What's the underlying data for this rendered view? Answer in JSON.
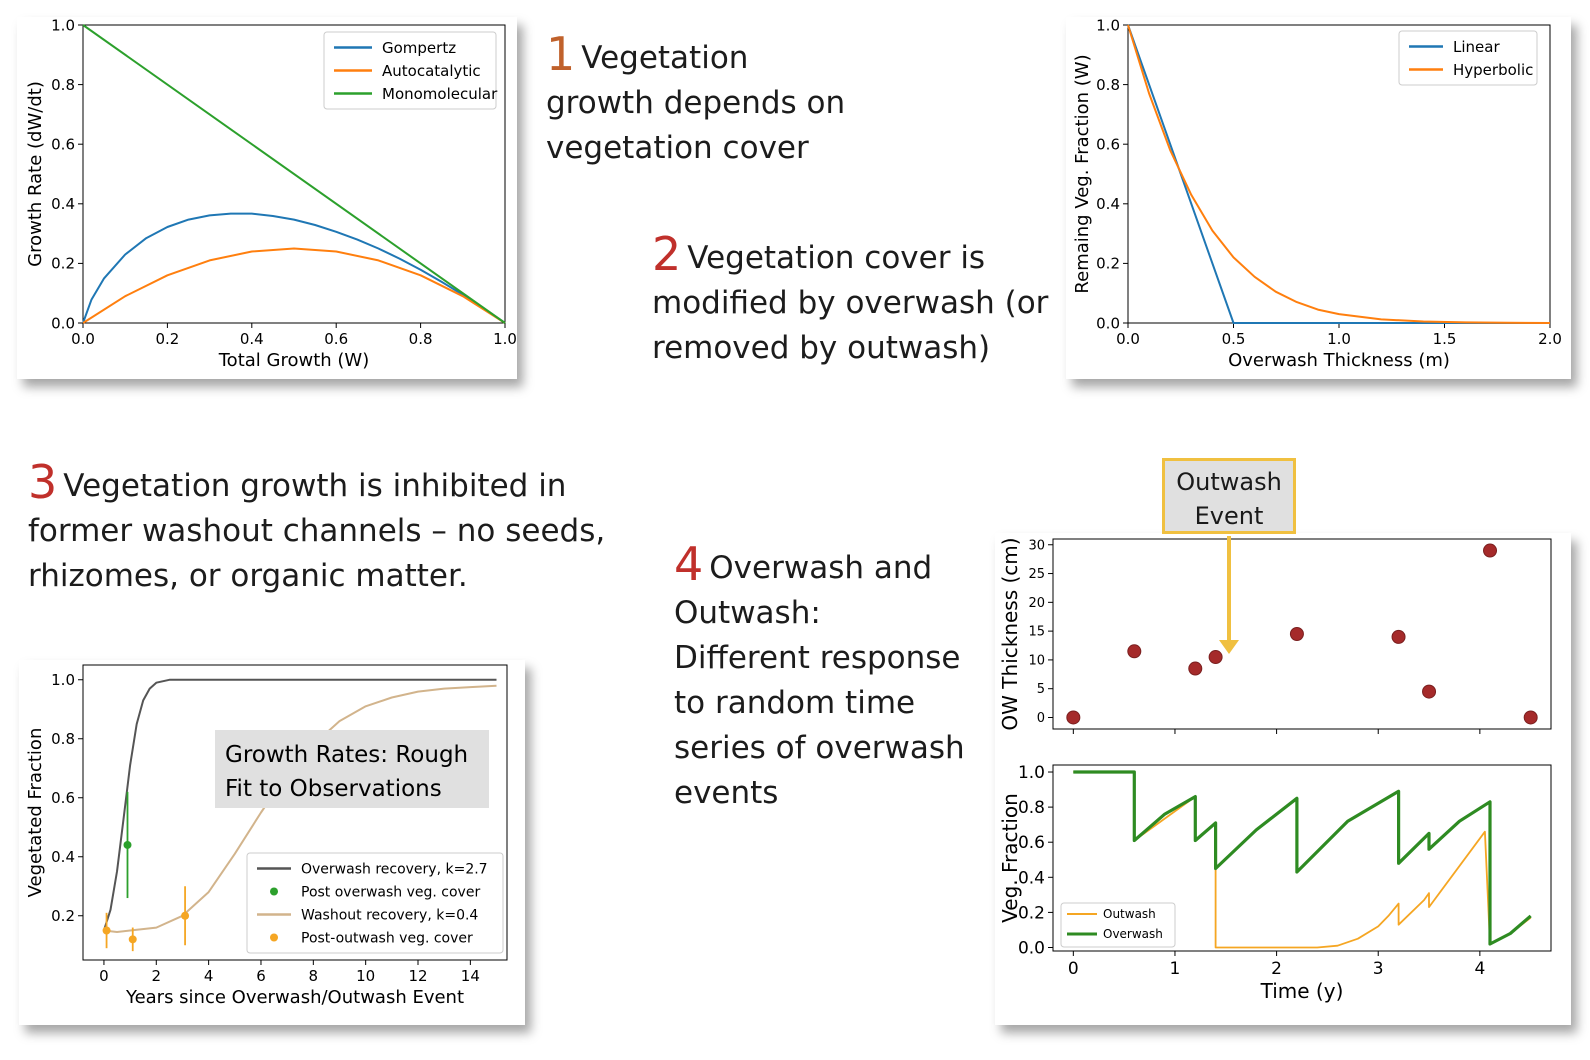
{
  "text_blocks": {
    "b1": {
      "num": "1",
      "line1": "Vegetation",
      "line2": "growth depends on",
      "line3": "vegetation cover",
      "num_color": "#c0612b"
    },
    "b2": {
      "num": "2",
      "line1": "Vegetation cover is",
      "line2": "modified by overwash (or",
      "line3": "removed by outwash)",
      "num_color": "#c0302b"
    },
    "b3": {
      "num": "3",
      "line1": "Vegetation growth is inhibited in",
      "line2": "former washout channels – no seeds,",
      "line3": "rhizomes, or organic matter.",
      "num_color": "#c0302b"
    },
    "b4": {
      "num": "4",
      "line1": "Overwash and",
      "line2": "Outwash:",
      "line3": "Different response",
      "line4": "to random time",
      "line5": "series of overwash",
      "line6": "events",
      "num_color": "#c0302b"
    }
  },
  "callout": {
    "line1": "Outwash",
    "line2": "Event"
  },
  "chart_data": [
    {
      "id": "growth",
      "type": "line",
      "xlabel": "Total Growth (W)",
      "ylabel": "Growth Rate (dW/dt)",
      "xlim": [
        0,
        1
      ],
      "ylim": [
        0,
        1
      ],
      "xticks": [
        "0.0",
        "0.2",
        "0.4",
        "0.6",
        "0.8",
        "1.0"
      ],
      "yticks": [
        "0.0",
        "0.2",
        "0.4",
        "0.6",
        "0.8",
        "1.0"
      ],
      "legend_position": "top-right",
      "series": [
        {
          "name": "Gompertz",
          "color": "#1f77b4",
          "x": [
            0,
            0.02,
            0.05,
            0.1,
            0.15,
            0.2,
            0.25,
            0.3,
            0.35,
            0.4,
            0.45,
            0.5,
            0.55,
            0.6,
            0.65,
            0.7,
            0.75,
            0.8,
            0.85,
            0.9,
            0.95,
            1.0
          ],
          "y": [
            0,
            0.078,
            0.15,
            0.23,
            0.285,
            0.322,
            0.347,
            0.361,
            0.367,
            0.367,
            0.359,
            0.347,
            0.329,
            0.306,
            0.28,
            0.25,
            0.216,
            0.179,
            0.138,
            0.095,
            0.049,
            0
          ]
        },
        {
          "name": "Autocatalytic",
          "color": "#ff7f0e",
          "x": [
            0,
            0.1,
            0.2,
            0.3,
            0.4,
            0.5,
            0.6,
            0.7,
            0.8,
            0.9,
            1.0
          ],
          "y": [
            0,
            0.09,
            0.16,
            0.21,
            0.24,
            0.25,
            0.24,
            0.21,
            0.16,
            0.09,
            0
          ]
        },
        {
          "name": "Monomolecular",
          "color": "#2ca02c",
          "x": [
            0,
            1.0
          ],
          "y": [
            1.0,
            0
          ]
        }
      ]
    },
    {
      "id": "overwash",
      "type": "line",
      "xlabel": "Overwash Thickness (m)",
      "ylabel": "Remaing Veg. Fraction (W)",
      "xlim": [
        0,
        2
      ],
      "ylim": [
        0,
        1
      ],
      "xticks": [
        "0.0",
        "0.5",
        "1.0",
        "1.5",
        "2.0"
      ],
      "yticks": [
        "0.0",
        "0.2",
        "0.4",
        "0.6",
        "0.8",
        "1.0"
      ],
      "legend_position": "top-right",
      "series": [
        {
          "name": "Linear",
          "color": "#1f77b4",
          "x": [
            0,
            0.5,
            2.0
          ],
          "y": [
            1.0,
            0,
            0
          ]
        },
        {
          "name": "Hyperbolic",
          "color": "#ff7f0e",
          "x": [
            0,
            0.1,
            0.2,
            0.3,
            0.4,
            0.5,
            0.6,
            0.7,
            0.8,
            0.9,
            1.0,
            1.2,
            1.4,
            1.6,
            1.8,
            2.0
          ],
          "y": [
            1.0,
            0.77,
            0.58,
            0.43,
            0.31,
            0.22,
            0.155,
            0.105,
            0.07,
            0.045,
            0.03,
            0.012,
            0.005,
            0.002,
            0.001,
            0
          ]
        }
      ]
    },
    {
      "id": "recovery",
      "type": "line",
      "xlabel": "Years since Overwash/Outwash Event",
      "ylabel": "Vegetated Fraction",
      "xlim": [
        -0.8,
        15.4
      ],
      "ylim": [
        0.05,
        1.05
      ],
      "xticks": [
        "0",
        "2",
        "4",
        "6",
        "8",
        "10",
        "12",
        "14"
      ],
      "yticks": [
        "0.2",
        "0.4",
        "0.6",
        "0.8",
        "1.0"
      ],
      "annotation": {
        "line1": "Growth Rates: Rough",
        "line2": "Fit to Observations"
      },
      "legend_position": "lower-right",
      "series": [
        {
          "name": "Overwash recovery, k=2.7",
          "color": "#555555",
          "x": [
            0,
            0.25,
            0.5,
            0.75,
            1.0,
            1.25,
            1.5,
            1.75,
            2.0,
            2.5,
            3.0,
            4.0,
            6.0,
            10.0,
            15.0
          ],
          "y": [
            0.15,
            0.22,
            0.35,
            0.53,
            0.71,
            0.85,
            0.93,
            0.97,
            0.99,
            1.0,
            1.0,
            1.0,
            1.0,
            1.0,
            1.0
          ]
        },
        {
          "name": "Post overwash veg. cover",
          "color": "#2ca02c",
          "points": [
            {
              "x": 0.9,
              "y": 0.44,
              "err": 0.18
            }
          ]
        },
        {
          "name": "Washout recovery, k=0.4",
          "color": "#d2b48c",
          "x": [
            0,
            0.5,
            1.0,
            2.0,
            3.0,
            4.0,
            5.0,
            6.0,
            7.0,
            8.0,
            9.0,
            10.0,
            11.0,
            12.0,
            13.0,
            14.0,
            15.0
          ],
          "y": [
            0.15,
            0.145,
            0.15,
            0.16,
            0.2,
            0.28,
            0.41,
            0.55,
            0.68,
            0.78,
            0.86,
            0.91,
            0.94,
            0.96,
            0.97,
            0.975,
            0.98
          ]
        },
        {
          "name": "Post-outwash veg. cover",
          "color": "#f5a623",
          "points": [
            {
              "x": 0.1,
              "y": 0.15,
              "err": 0.06
            },
            {
              "x": 1.1,
              "y": 0.12,
              "err": 0.04
            },
            {
              "x": 3.1,
              "y": 0.2,
              "err": 0.1
            }
          ]
        }
      ]
    },
    {
      "id": "ow-thickness",
      "type": "scatter",
      "ylabel": "OW Thickness (cm)",
      "xlim": [
        -0.2,
        4.7
      ],
      "ylim": [
        -2,
        31
      ],
      "yticks": [
        "0",
        "5",
        "10",
        "15",
        "20",
        "25",
        "30"
      ],
      "color": "#a52a2a",
      "x": [
        0,
        0.6,
        1.2,
        1.4,
        2.2,
        3.2,
        3.5,
        4.1,
        4.5
      ],
      "y": [
        0,
        11.5,
        8.5,
        10.5,
        14.5,
        14,
        4.5,
        29,
        0
      ]
    },
    {
      "id": "veg-fraction",
      "type": "line",
      "xlabel": "Time (y)",
      "ylabel": "Veg. Fraction",
      "xlim": [
        -0.2,
        4.7
      ],
      "ylim": [
        -0.02,
        1.04
      ],
      "xticks": [
        "0",
        "1",
        "2",
        "3",
        "4"
      ],
      "yticks": [
        "0.0",
        "0.2",
        "0.4",
        "0.6",
        "0.8",
        "1.0"
      ],
      "legend_position": "lower-left",
      "series": [
        {
          "name": "Outwash",
          "color": "#f5a623",
          "x": [
            0,
            0.6,
            0.6,
            1.2,
            1.2,
            1.4,
            1.4,
            2.4,
            2.6,
            2.8,
            3.0,
            3.1,
            3.2,
            3.2,
            3.45,
            3.5,
            3.5,
            4.05,
            4.1,
            4.3,
            4.5
          ],
          "y": [
            1.0,
            1.0,
            0.61,
            0.86,
            0.61,
            0.71,
            0.0,
            0.0,
            0.01,
            0.05,
            0.12,
            0.18,
            0.25,
            0.13,
            0.27,
            0.31,
            0.23,
            0.66,
            0.02,
            0.08,
            0.17
          ]
        },
        {
          "name": "Overwash",
          "color": "#2e8b22",
          "x": [
            0,
            0.6,
            0.6,
            0.9,
            1.2,
            1.2,
            1.4,
            1.4,
            1.8,
            2.2,
            2.2,
            2.7,
            3.2,
            3.2,
            3.5,
            3.5,
            3.8,
            4.1,
            4.1,
            4.3,
            4.5
          ],
          "y": [
            1.0,
            1.0,
            0.61,
            0.76,
            0.86,
            0.61,
            0.71,
            0.45,
            0.67,
            0.85,
            0.43,
            0.72,
            0.89,
            0.48,
            0.65,
            0.56,
            0.72,
            0.83,
            0.02,
            0.08,
            0.18
          ]
        }
      ]
    }
  ]
}
